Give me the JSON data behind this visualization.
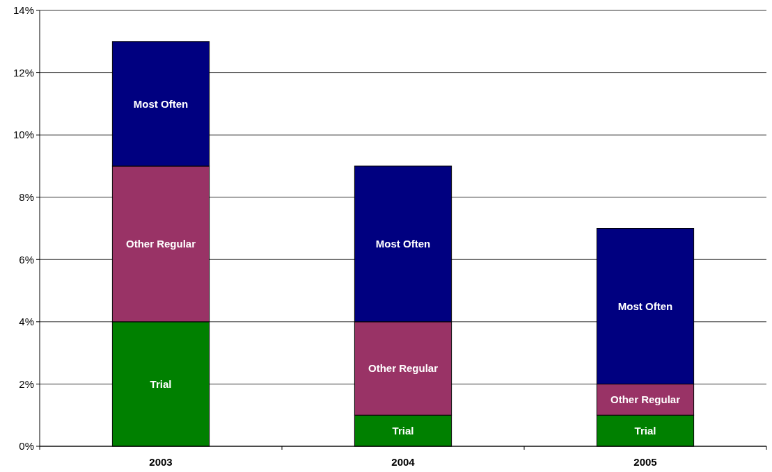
{
  "chart_data": {
    "type": "bar",
    "stacked": true,
    "categories": [
      "2003",
      "2004",
      "2005"
    ],
    "series": [
      {
        "name": "Trial",
        "color": "#008000",
        "values": [
          4,
          1,
          1
        ]
      },
      {
        "name": "Other Regular",
        "color": "#993366",
        "values": [
          5,
          3,
          1
        ]
      },
      {
        "name": "Most Often",
        "color": "#000080",
        "values": [
          4,
          5,
          5
        ]
      }
    ],
    "ylim": [
      0,
      14
    ],
    "yticks": [
      {
        "value": 0,
        "label": "0%"
      },
      {
        "value": 2,
        "label": "2%"
      },
      {
        "value": 4,
        "label": "4%"
      },
      {
        "value": 6,
        "label": "6%"
      },
      {
        "value": 8,
        "label": "8%"
      },
      {
        "value": 10,
        "label": "10%"
      },
      {
        "value": 12,
        "label": "12%"
      },
      {
        "value": 14,
        "label": "14%"
      }
    ],
    "grid": "y"
  }
}
